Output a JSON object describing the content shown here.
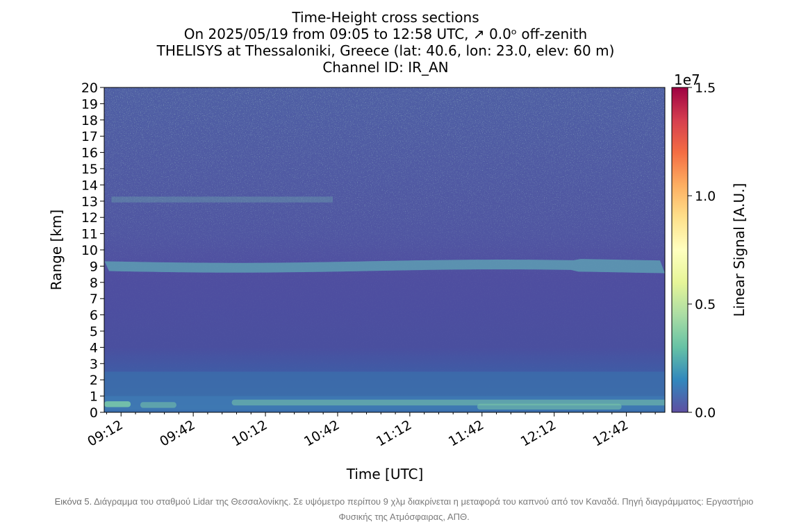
{
  "chart_data": {
    "type": "heatmap",
    "title_lines": [
      "Time-Height cross sections",
      "On 2025/05/19 from 09:05 to 12:58 UTC,  ↗  0.0ᵒ off-zenith",
      "THELISYS at Thessaloniki, Greece (lat: 40.6, lon: 23.0, elev: 60 m)",
      "Channel ID: IR_AN"
    ],
    "xlabel": "Time [UTC]",
    "ylabel": "Range [km]",
    "x_range_minutes_utc": [
      545,
      778
    ],
    "y_range_km": [
      0,
      20
    ],
    "x_ticks": [
      {
        "label": "09:12",
        "minutes": 552
      },
      {
        "label": "09:42",
        "minutes": 582
      },
      {
        "label": "10:12",
        "minutes": 612
      },
      {
        "label": "10:42",
        "minutes": 642
      },
      {
        "label": "11:12",
        "minutes": 672
      },
      {
        "label": "11:42",
        "minutes": 702
      },
      {
        "label": "12:12",
        "minutes": 732
      },
      {
        "label": "12:42",
        "minutes": 762
      }
    ],
    "y_ticks": [
      "0",
      "1",
      "2",
      "3",
      "4",
      "5",
      "6",
      "7",
      "8",
      "9",
      "10",
      "11",
      "12",
      "13",
      "14",
      "15",
      "16",
      "17",
      "18",
      "19",
      "20"
    ],
    "colorbar": {
      "label": "Linear Signal [A.U.]",
      "exponent": "1e7",
      "range": [
        0,
        1.5
      ],
      "ticks": [
        "0.0",
        "0.5",
        "1.0",
        "1.5"
      ],
      "colormap": "Spectral_r",
      "stops": [
        "#5e4fa2",
        "#3288bd",
        "#66c2a5",
        "#abdda4",
        "#e6f598",
        "#ffffbf",
        "#fee08b",
        "#fdae61",
        "#f46d43",
        "#d53e4f",
        "#9e0142"
      ]
    },
    "features": [
      {
        "range_km": 9.0,
        "description_value": 0.18
      },
      {
        "range_km": 13.1,
        "description_value": 0.12
      },
      {
        "range_km": 0.5,
        "description_value": 0.3
      }
    ]
  },
  "caption": {
    "label": "Εικόνα 5.",
    "text": "Διάγραμμα του σταθμού Lidar της Θεσσαλονίκης. Σε υψόμετρο περίπου 9 χλμ διακρίνεται η μεταφορά του καπνού από τον Καναδά. Πηγή διαγράμματος: Εργαστήριο Φυσικής της Ατμόσφαιρας, ΑΠΘ."
  }
}
